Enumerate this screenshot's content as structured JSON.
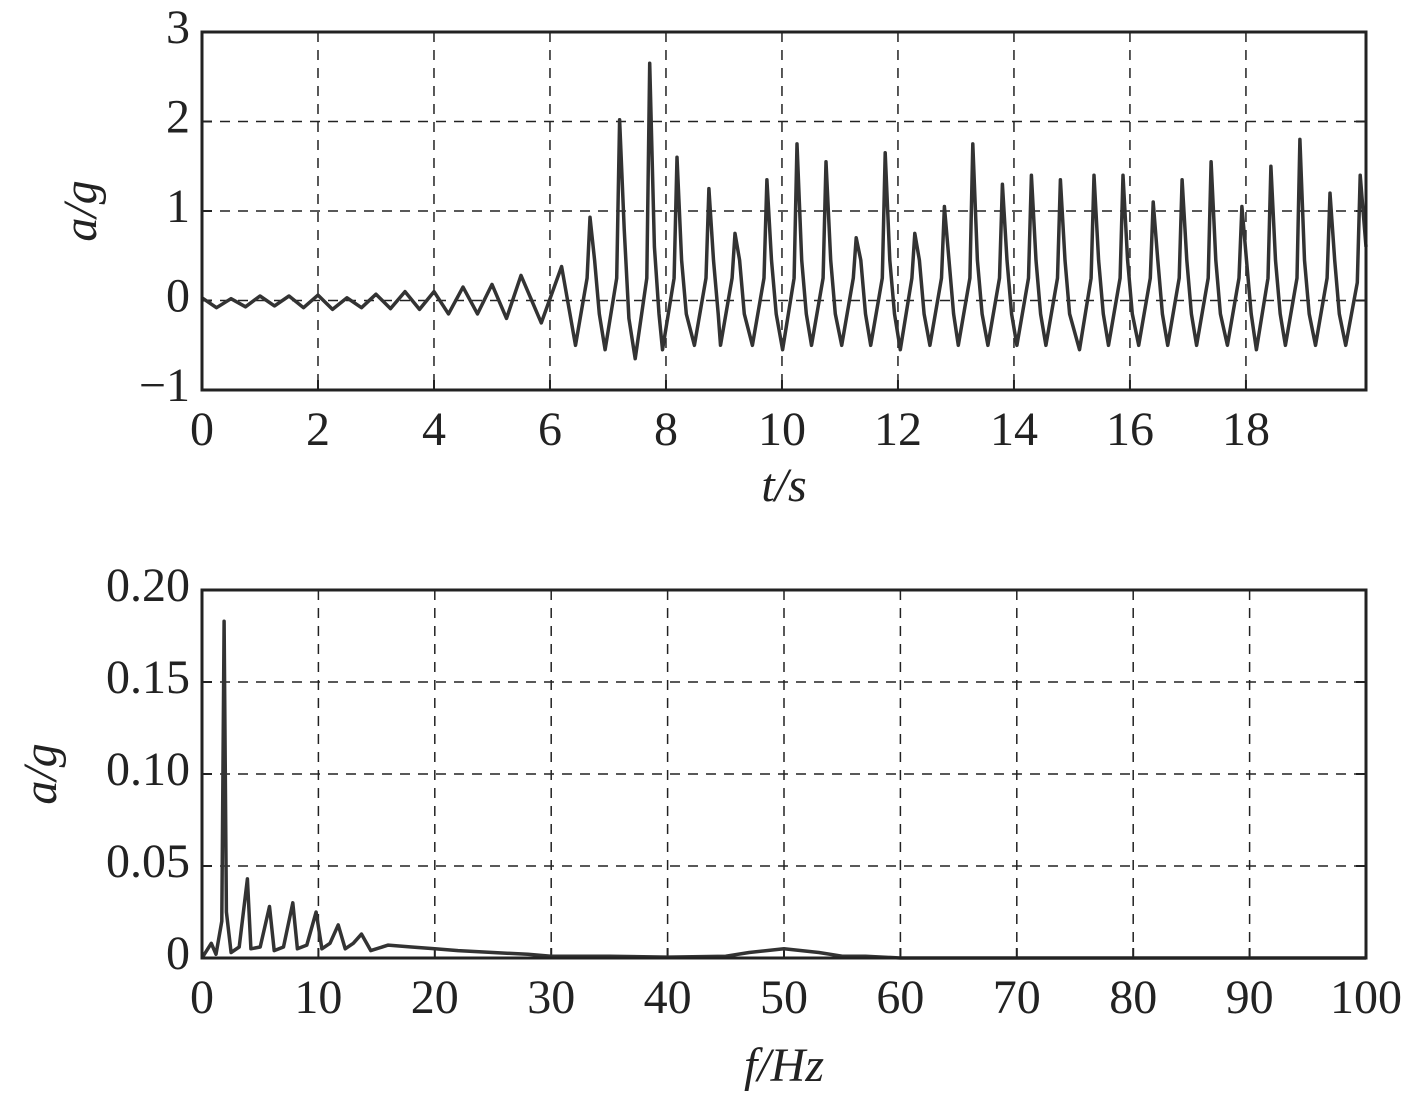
{
  "chart_data": [
    {
      "type": "line",
      "xlabel": "t/s",
      "ylabel": "a/g",
      "color": "#333333",
      "grid": true,
      "xlim": [
        0,
        20.07
      ],
      "xticks": [
        0,
        2,
        4,
        6,
        8,
        10,
        12,
        14,
        16,
        18
      ],
      "ylim": [
        -1,
        3
      ],
      "yticks": [
        {
          "value": -1,
          "label": "−1"
        },
        0,
        1,
        2,
        3
      ],
      "x": [
        0,
        0.25,
        0.5,
        0.75,
        1,
        1.25,
        1.5,
        1.75,
        2,
        2.25,
        2.5,
        2.75,
        3,
        3.25,
        3.5,
        3.75,
        4,
        4.25,
        4.5,
        4.75,
        5,
        5.25,
        5.5,
        5.85,
        6.2,
        6.44,
        6.64,
        6.69,
        6.77,
        6.85,
        6.95,
        7.15,
        7.2,
        7.28,
        7.36,
        7.47,
        7.67,
        7.72,
        7.8,
        7.88,
        7.94,
        8.14,
        8.19,
        8.27,
        8.35,
        8.49,
        8.69,
        8.74,
        8.82,
        8.9,
        8.94,
        9.14,
        9.19,
        9.27,
        9.35,
        9.49,
        9.69,
        9.74,
        9.82,
        9.9,
        10.01,
        10.21,
        10.26,
        10.34,
        10.42,
        10.51,
        10.71,
        10.76,
        10.84,
        10.92,
        11.03,
        11.23,
        11.28,
        11.36,
        11.44,
        11.53,
        11.73,
        11.78,
        11.86,
        11.94,
        12.04,
        12.24,
        12.29,
        12.37,
        12.45,
        12.55,
        12.75,
        12.8,
        12.88,
        12.96,
        13.04,
        13.24,
        13.29,
        13.37,
        13.45,
        13.55,
        13.75,
        13.8,
        13.88,
        13.96,
        14.05,
        14.25,
        14.3,
        14.38,
        14.46,
        14.55,
        14.75,
        14.8,
        14.88,
        14.96,
        15.13,
        15.33,
        15.38,
        15.46,
        15.54,
        15.63,
        15.83,
        15.88,
        15.96,
        16.04,
        16.15,
        16.35,
        16.4,
        16.48,
        16.56,
        16.65,
        16.85,
        16.9,
        16.98,
        17.06,
        17.15,
        17.35,
        17.4,
        17.48,
        17.56,
        17.68,
        17.88,
        17.93,
        18.01,
        18.09,
        18.18,
        18.38,
        18.43,
        18.51,
        18.59,
        18.68,
        18.88,
        18.93,
        19.01,
        19.09,
        19.2,
        19.4,
        19.45,
        19.53,
        19.61,
        19.72,
        19.92,
        19.97,
        20.07
      ],
      "values": [
        0.03,
        -0.08,
        0.02,
        -0.07,
        0.05,
        -0.06,
        0.05,
        -0.08,
        0.06,
        -0.1,
        0.03,
        -0.08,
        0.07,
        -0.09,
        0.1,
        -0.1,
        0.1,
        -0.15,
        0.15,
        -0.15,
        0.18,
        -0.2,
        0.28,
        -0.25,
        0.38,
        -0.5,
        0.25,
        0.93,
        0.45,
        -0.15,
        -0.55,
        0.25,
        2.02,
        0.8,
        -0.2,
        -0.65,
        0.25,
        2.65,
        0.6,
        -0.15,
        -0.55,
        0.25,
        1.6,
        0.45,
        -0.15,
        -0.5,
        0.25,
        1.25,
        0.45,
        -0.15,
        -0.5,
        0.25,
        0.75,
        0.45,
        -0.15,
        -0.5,
        0.25,
        1.35,
        0.45,
        -0.15,
        -0.55,
        0.25,
        1.75,
        0.45,
        -0.15,
        -0.5,
        0.25,
        1.55,
        0.45,
        -0.15,
        -0.5,
        0.25,
        0.7,
        0.45,
        -0.15,
        -0.5,
        0.25,
        1.65,
        0.45,
        -0.15,
        -0.55,
        0.25,
        0.75,
        0.45,
        -0.15,
        -0.5,
        0.25,
        1.05,
        0.45,
        -0.15,
        -0.5,
        0.25,
        1.75,
        0.45,
        -0.15,
        -0.5,
        0.25,
        1.3,
        0.45,
        -0.15,
        -0.5,
        0.25,
        1.4,
        0.45,
        -0.15,
        -0.5,
        0.25,
        1.35,
        0.45,
        -0.15,
        -0.55,
        0.25,
        1.4,
        0.45,
        -0.15,
        -0.5,
        0.25,
        1.4,
        0.45,
        -0.15,
        -0.5,
        0.25,
        1.1,
        0.45,
        -0.15,
        -0.5,
        0.25,
        1.35,
        0.45,
        -0.15,
        -0.5,
        0.25,
        1.55,
        0.45,
        -0.15,
        -0.5,
        0.25,
        1.05,
        0.45,
        -0.15,
        -0.55,
        0.25,
        1.5,
        0.45,
        -0.15,
        -0.5,
        0.25,
        1.8,
        0.45,
        -0.15,
        -0.5,
        0.25,
        1.2,
        0.45,
        -0.15,
        -0.5,
        0.2,
        1.4,
        0.6
      ]
    },
    {
      "type": "line",
      "xlabel": "f/Hz",
      "ylabel": "a/g",
      "color": "#333333",
      "grid": true,
      "xlim": [
        0,
        100
      ],
      "xticks": [
        0,
        10,
        20,
        30,
        40,
        50,
        60,
        70,
        80,
        90,
        100
      ],
      "ylim": [
        0,
        0.2
      ],
      "yticks": [
        0,
        0.05,
        {
          "value": 0.1,
          "label": "0.10"
        },
        0.15,
        {
          "value": 0.2,
          "label": "0.20"
        }
      ],
      "x": [
        0,
        0.8,
        1.2,
        1.7,
        1.9,
        2.1,
        2.5,
        3.2,
        3.9,
        4.2,
        5,
        5.8,
        6.2,
        7,
        7.8,
        8.2,
        9,
        9.8,
        10.3,
        11,
        11.7,
        12.3,
        13,
        13.7,
        14.5,
        16,
        18,
        20,
        22,
        25,
        28,
        30,
        35,
        40,
        45,
        47,
        50,
        53,
        55,
        57,
        60,
        100
      ],
      "values": [
        0,
        0.008,
        0.002,
        0.02,
        0.183,
        0.025,
        0.003,
        0.006,
        0.043,
        0.005,
        0.006,
        0.028,
        0.004,
        0.006,
        0.03,
        0.005,
        0.007,
        0.025,
        0.005,
        0.008,
        0.018,
        0.005,
        0.008,
        0.013,
        0.004,
        0.007,
        0.006,
        0.005,
        0.004,
        0.003,
        0.002,
        0.001,
        0.001,
        0.0005,
        0.001,
        0.003,
        0.005,
        0.003,
        0.001,
        0.001,
        0,
        0
      ]
    }
  ]
}
